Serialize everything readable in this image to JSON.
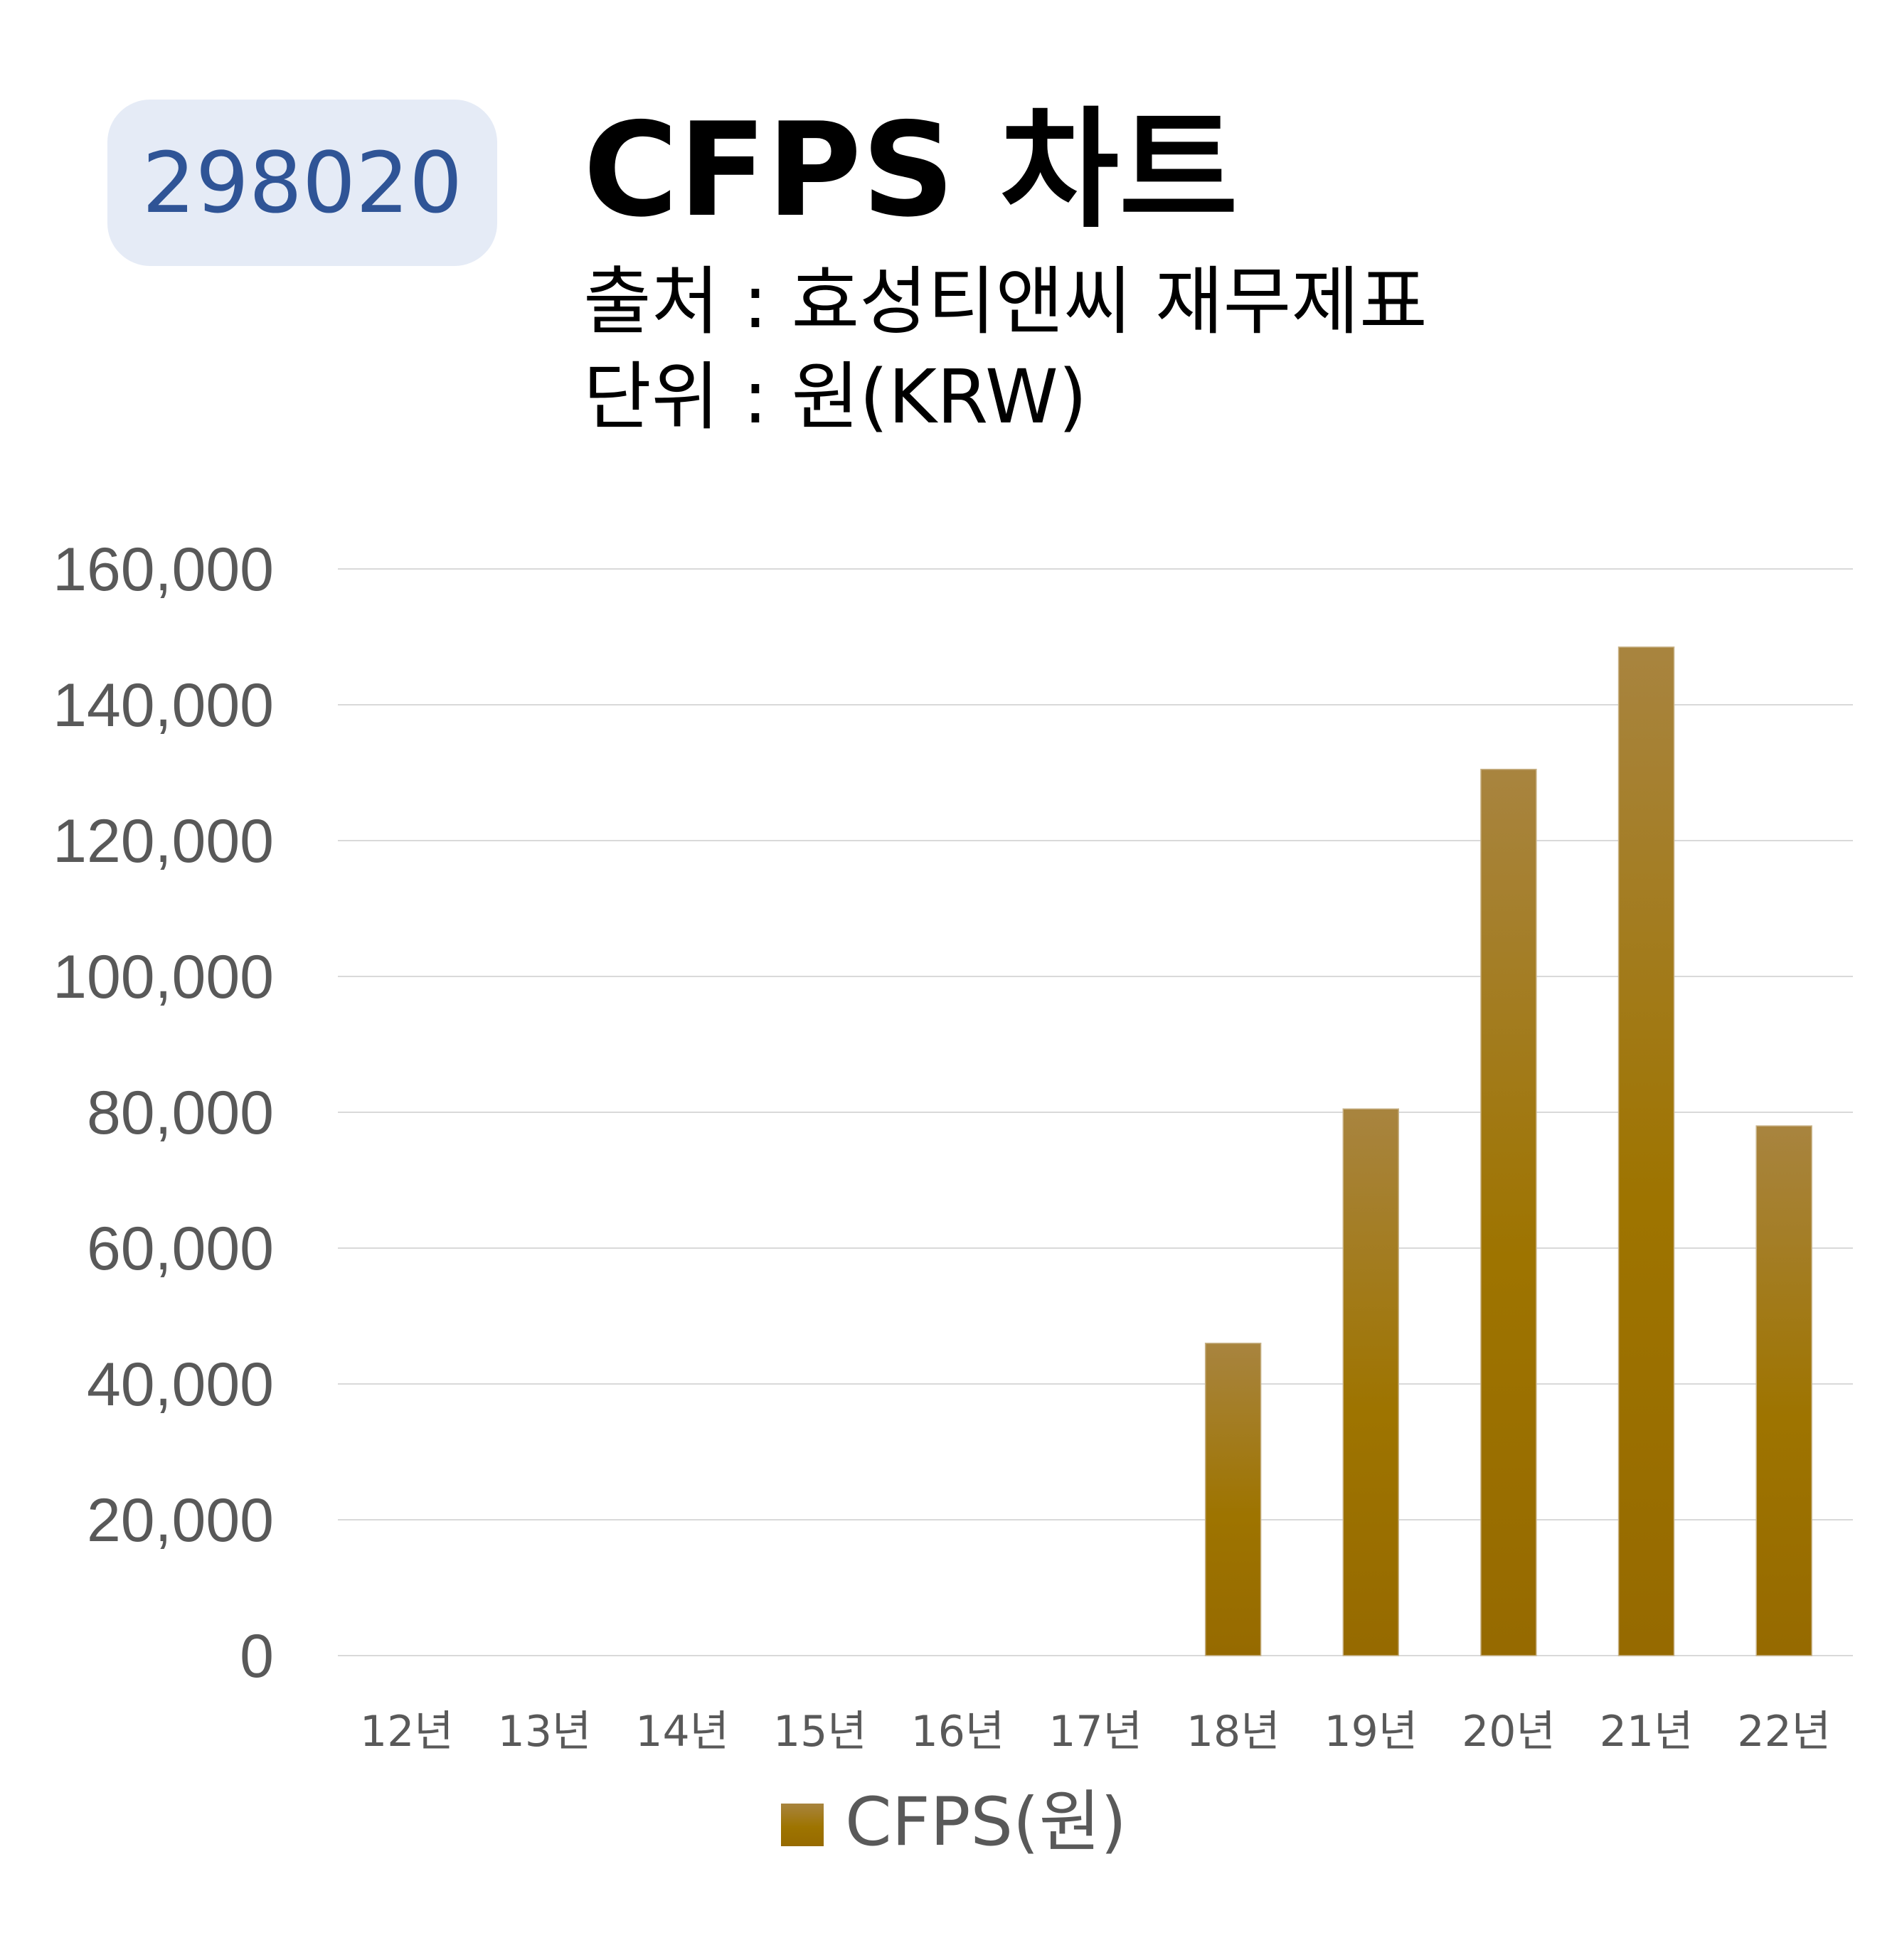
{
  "badge": {
    "code": "298020"
  },
  "header": {
    "title": "CFPS 차트",
    "source": "출처 : 효성티앤씨 재무제표",
    "unit": "단위 : 원(KRW)"
  },
  "chart_data": {
    "type": "bar",
    "title": "CFPS 차트",
    "categories": [
      "12년",
      "13년",
      "14년",
      "15년",
      "16년",
      "17년",
      "18년",
      "19년",
      "20년",
      "21년",
      "22년"
    ],
    "series": [
      {
        "name": "CFPS(원)",
        "values": [
          0,
          0,
          0,
          0,
          0,
          0,
          46000,
          80500,
          130500,
          148500,
          78000
        ]
      }
    ],
    "ylim": [
      0,
      160000
    ],
    "yticks": [
      0,
      20000,
      40000,
      60000,
      80000,
      100000,
      120000,
      140000,
      160000
    ],
    "ytick_labels": [
      "0",
      "20,000",
      "40,000",
      "60,000",
      "80,000",
      "100,000",
      "120,000",
      "140,000",
      "160,000"
    ],
    "grid": true,
    "legend": "bottom",
    "colors": {
      "bar_top": "#a8843f",
      "bar_bottom": "#9a6c00",
      "grid": "#d9d9d9",
      "text": "#595959"
    }
  }
}
